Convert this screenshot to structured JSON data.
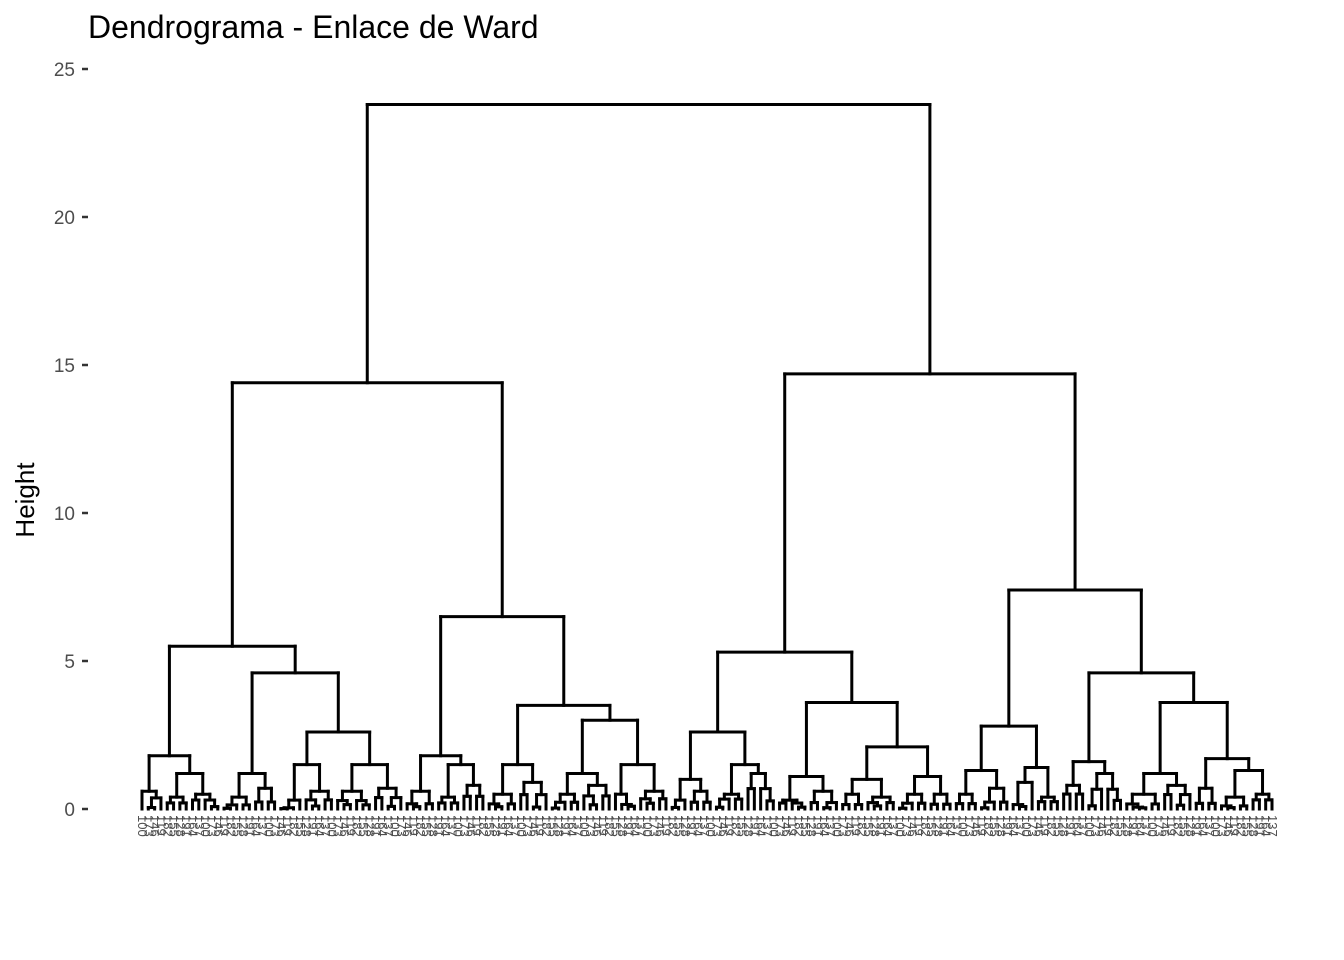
{
  "chart_data": {
    "type": "dendrogram",
    "title": "Dendrograma - Enlace de Ward",
    "ylabel": "Height",
    "xlabel": "",
    "ylim": [
      0,
      25
    ],
    "yticks": [
      0,
      5,
      10,
      15,
      20,
      25
    ],
    "ytick_labels": [
      "0",
      "5",
      "10",
      "15",
      "20",
      "25"
    ],
    "grid": false,
    "line_color": "#000000",
    "merge_heights": {
      "root": 23.8,
      "left_cluster": 14.4,
      "right_cluster": 14.7,
      "left_a": 5.5,
      "left_b": 6.5,
      "right_a": 5.3,
      "right_b": 7.4,
      "left_a_sub": [
        1.8,
        4.6,
        2.6,
        1.2,
        1.5,
        1.5
      ],
      "left_b_sub": [
        1.8,
        3.5,
        3.0,
        1.5,
        1.2,
        1.5
      ],
      "right_a_sub": [
        2.6,
        3.6,
        2.1,
        1.5,
        1.1,
        1.1
      ],
      "right_b_sub": [
        2.8,
        4.6,
        3.6,
        1.6,
        1.7,
        1.3
      ]
    },
    "leaf_labels_note": "leaf labels overlap and are not legible"
  }
}
